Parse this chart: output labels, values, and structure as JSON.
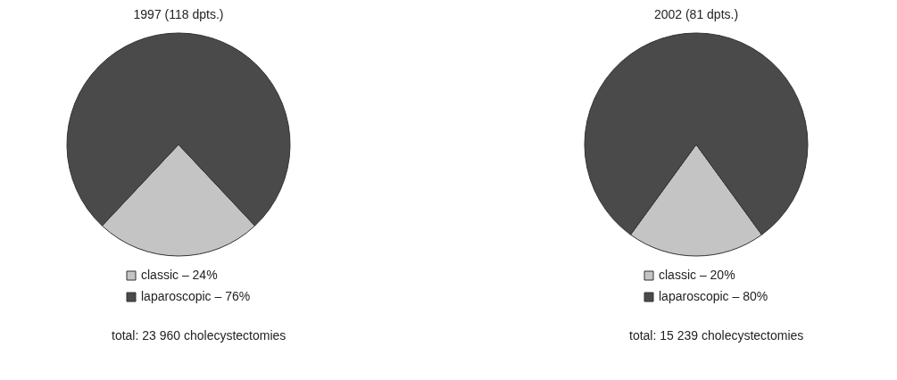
{
  "chart_data": [
    {
      "type": "pie",
      "title": "1997 (118 dpts.)",
      "categories": [
        "classic – 24%",
        "laparoscopic – 76%"
      ],
      "values": [
        24,
        76
      ],
      "colors": [
        "#c4c4c4",
        "#4a4a4a"
      ],
      "legend": "bottom",
      "annotations": [
        "total: 23 960 cholecystectomies"
      ]
    },
    {
      "type": "pie",
      "title": "2002 (81 dpts.)",
      "categories": [
        "classic – 20%",
        "laparoscopic – 80%"
      ],
      "values": [
        20,
        80
      ],
      "colors": [
        "#c4c4c4",
        "#4a4a4a"
      ],
      "legend": "bottom",
      "annotations": [
        "total: 15 239 cholecystectomies"
      ]
    }
  ]
}
